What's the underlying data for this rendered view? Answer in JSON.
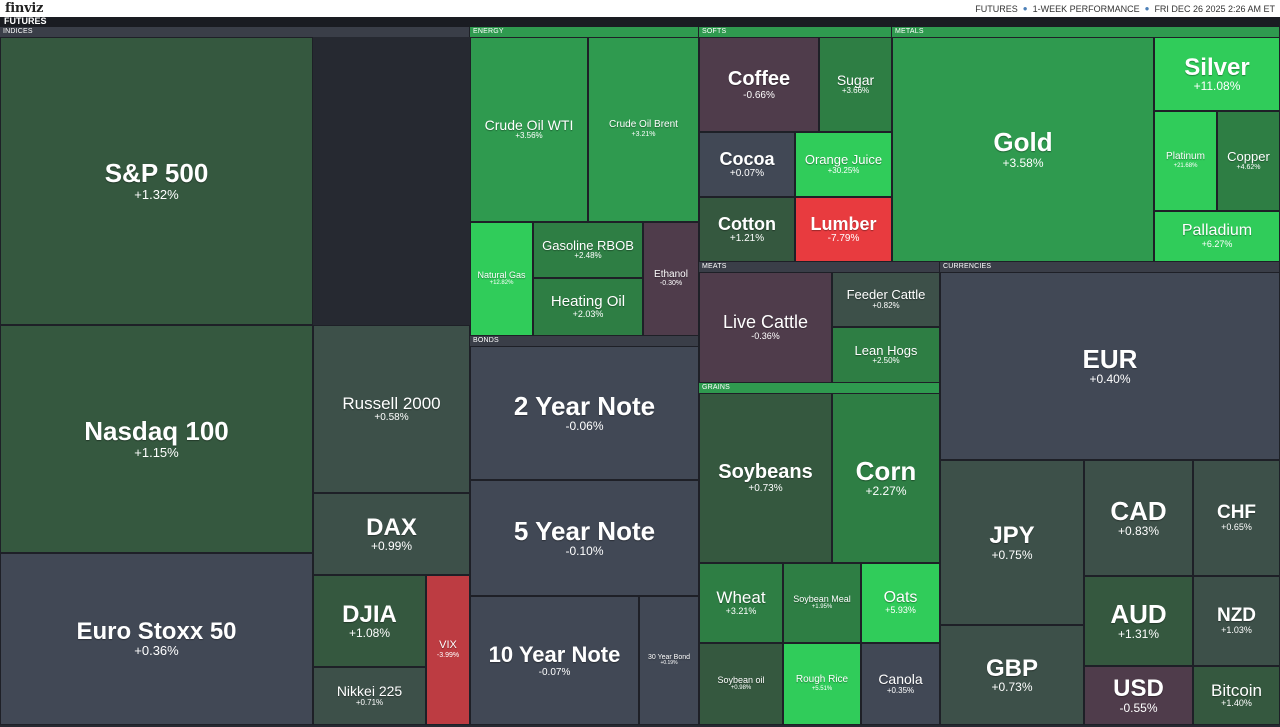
{
  "header": {
    "logo": "finviz",
    "map_title": "FUTURES",
    "info": [
      "FUTURES",
      "1-WEEK PERFORMANCE",
      "FRI DEC 26 2025 2:26 AM ET"
    ]
  },
  "colors": {
    "dgreen": "#35583f",
    "mgreen": "#2e7e44",
    "green": "#2f9a4f",
    "bgreen": "#30cc5a",
    "grey": "#414855",
    "greygreen": "#3d5049",
    "plum": "#4f3c4b",
    "red": "#e83b3f",
    "dred": "#bd3c42",
    "header_green": "#2f9a4f",
    "header_dark": "#3a3e48"
  },
  "groups": {
    "indices": "INDICES",
    "energy": "ENERGY",
    "softs": "SOFTS",
    "metals": "METALS",
    "meats": "MEATS",
    "currencies": "CURRENCIES",
    "bonds": "BONDS",
    "grains": "GRAINS"
  },
  "tiles": {
    "sp500": {
      "name": "S&P 500",
      "change": "+1.32%"
    },
    "nasdaq": {
      "name": "Nasdaq 100",
      "change": "+1.15%"
    },
    "stoxx": {
      "name": "Euro Stoxx 50",
      "change": "+0.36%"
    },
    "russell": {
      "name": "Russell 2000",
      "change": "+0.58%"
    },
    "dax": {
      "name": "DAX",
      "change": "+0.99%"
    },
    "djia": {
      "name": "DJIA",
      "change": "+1.08%"
    },
    "vix": {
      "name": "VIX",
      "change": "-3.99%"
    },
    "nikkei": {
      "name": "Nikkei 225",
      "change": "+0.71%"
    },
    "crude_wti": {
      "name": "Crude Oil WTI",
      "change": "+3.56%"
    },
    "crude_brent": {
      "name": "Crude Oil Brent",
      "change": "+3.21%"
    },
    "natgas": {
      "name": "Natural Gas",
      "change": "+12.82%"
    },
    "gasoline": {
      "name": "Gasoline RBOB",
      "change": "+2.48%"
    },
    "heating": {
      "name": "Heating Oil",
      "change": "+2.03%"
    },
    "ethanol": {
      "name": "Ethanol",
      "change": "-0.30%"
    },
    "coffee": {
      "name": "Coffee",
      "change": "-0.66%"
    },
    "sugar": {
      "name": "Sugar",
      "change": "+3.66%"
    },
    "cocoa": {
      "name": "Cocoa",
      "change": "+0.07%"
    },
    "oj": {
      "name": "Orange Juice",
      "change": "+30.25%"
    },
    "cotton": {
      "name": "Cotton",
      "change": "+1.21%"
    },
    "lumber": {
      "name": "Lumber",
      "change": "-7.79%"
    },
    "gold": {
      "name": "Gold",
      "change": "+3.58%"
    },
    "silver": {
      "name": "Silver",
      "change": "+11.08%"
    },
    "platinum": {
      "name": "Platinum",
      "change": "+21.68%"
    },
    "copper": {
      "name": "Copper",
      "change": "+4.62%"
    },
    "palladium": {
      "name": "Palladium",
      "change": "+6.27%"
    },
    "livecattle": {
      "name": "Live Cattle",
      "change": "-0.36%"
    },
    "feeder": {
      "name": "Feeder Cattle",
      "change": "+0.82%"
    },
    "leanhogs": {
      "name": "Lean Hogs",
      "change": "+2.50%"
    },
    "eur": {
      "name": "EUR",
      "change": "+0.40%"
    },
    "jpy": {
      "name": "JPY",
      "change": "+0.75%"
    },
    "cad": {
      "name": "CAD",
      "change": "+0.83%"
    },
    "chf": {
      "name": "CHF",
      "change": "+0.65%"
    },
    "gbp": {
      "name": "GBP",
      "change": "+0.73%"
    },
    "aud": {
      "name": "AUD",
      "change": "+1.31%"
    },
    "nzd": {
      "name": "NZD",
      "change": "+1.03%"
    },
    "usd": {
      "name": "USD",
      "change": "-0.55%"
    },
    "bitcoin": {
      "name": "Bitcoin",
      "change": "+1.40%"
    },
    "note2": {
      "name": "2 Year Note",
      "change": "-0.06%"
    },
    "note5": {
      "name": "5 Year Note",
      "change": "-0.10%"
    },
    "note10": {
      "name": "10 Year Note",
      "change": "-0.07%"
    },
    "bond30": {
      "name": "30 Year Bond",
      "change": "+0.19%"
    },
    "soybeans": {
      "name": "Soybeans",
      "change": "+0.73%"
    },
    "corn": {
      "name": "Corn",
      "change": "+2.27%"
    },
    "wheat": {
      "name": "Wheat",
      "change": "+3.21%"
    },
    "soymeal": {
      "name": "Soybean Meal",
      "change": "+1.95%"
    },
    "oats": {
      "name": "Oats",
      "change": "+5.93%"
    },
    "soyoil": {
      "name": "Soybean oil",
      "change": "+0.98%"
    },
    "roughrice": {
      "name": "Rough Rice",
      "change": "+5.51%"
    },
    "canola": {
      "name": "Canola",
      "change": "+0.35%"
    }
  }
}
